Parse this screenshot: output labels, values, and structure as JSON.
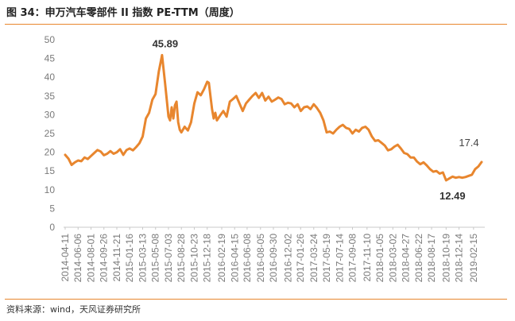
{
  "header": {
    "title": "图 34：申万汽车零部件 II 指数 PE-TTM（周度）"
  },
  "footer": {
    "source": "资料来源：wind，天风证券研究所"
  },
  "chart_data": {
    "type": "line",
    "series": [
      {
        "color": "#e8862e",
        "points": [
          [
            "2014-04-11",
            19.3
          ],
          [
            "2014-04-25",
            18.3
          ],
          [
            "2014-05-09",
            16.6
          ],
          [
            "2014-05-23",
            17.3
          ],
          [
            "2014-06-06",
            17.8
          ],
          [
            "2014-06-20",
            17.6
          ],
          [
            "2014-07-04",
            18.6
          ],
          [
            "2014-07-18",
            18.2
          ],
          [
            "2014-08-01",
            19.0
          ],
          [
            "2014-08-15",
            19.8
          ],
          [
            "2014-08-29",
            20.6
          ],
          [
            "2014-09-12",
            20.2
          ],
          [
            "2014-09-26",
            19.2
          ],
          [
            "2014-10-10",
            19.6
          ],
          [
            "2014-10-24",
            20.3
          ],
          [
            "2014-11-07",
            19.6
          ],
          [
            "2014-11-21",
            20.0
          ],
          [
            "2014-12-05",
            20.8
          ],
          [
            "2014-12-19",
            19.3
          ],
          [
            "2015-01-02",
            20.6
          ],
          [
            "2015-01-16",
            21.0
          ],
          [
            "2015-01-30",
            20.5
          ],
          [
            "2015-02-13",
            21.4
          ],
          [
            "2015-02-27",
            22.4
          ],
          [
            "2015-03-13",
            24.2
          ],
          [
            "2015-03-27",
            29.0
          ],
          [
            "2015-04-10",
            30.5
          ],
          [
            "2015-04-24",
            34.0
          ],
          [
            "2015-05-08",
            35.5
          ],
          [
            "2015-05-22",
            41.5
          ],
          [
            "2015-06-05",
            45.89
          ],
          [
            "2015-06-19",
            38.0
          ],
          [
            "2015-07-03",
            29.5
          ],
          [
            "2015-07-10",
            28.5
          ],
          [
            "2015-07-17",
            32.0
          ],
          [
            "2015-07-24",
            29.0
          ],
          [
            "2015-07-31",
            32.5
          ],
          [
            "2015-08-07",
            33.5
          ],
          [
            "2015-08-14",
            28.0
          ],
          [
            "2015-08-21",
            26.0
          ],
          [
            "2015-08-28",
            25.3
          ],
          [
            "2015-09-11",
            26.8
          ],
          [
            "2015-09-25",
            25.8
          ],
          [
            "2015-10-09",
            28.0
          ],
          [
            "2015-10-23",
            33.0
          ],
          [
            "2015-11-06",
            36.0
          ],
          [
            "2015-11-20",
            35.2
          ],
          [
            "2015-12-04",
            36.8
          ],
          [
            "2015-12-18",
            38.8
          ],
          [
            "2015-12-25",
            38.5
          ],
          [
            "2016-01-08",
            31.5
          ],
          [
            "2016-01-15",
            29.0
          ],
          [
            "2016-01-22",
            30.5
          ],
          [
            "2016-01-29",
            28.5
          ],
          [
            "2016-02-12",
            29.8
          ],
          [
            "2016-02-26",
            31.0
          ],
          [
            "2016-03-11",
            29.5
          ],
          [
            "2016-03-25",
            33.5
          ],
          [
            "2016-04-08",
            34.2
          ],
          [
            "2016-04-22",
            35.0
          ],
          [
            "2016-05-06",
            33.0
          ],
          [
            "2016-05-20",
            31.0
          ],
          [
            "2016-06-03",
            33.0
          ],
          [
            "2016-06-17",
            34.0
          ],
          [
            "2016-07-01",
            35.0
          ],
          [
            "2016-07-15",
            35.8
          ],
          [
            "2016-07-29",
            34.5
          ],
          [
            "2016-08-12",
            35.8
          ],
          [
            "2016-08-26",
            33.8
          ],
          [
            "2016-09-09",
            34.8
          ],
          [
            "2016-09-23",
            33.5
          ],
          [
            "2016-10-07",
            34.0
          ],
          [
            "2016-10-21",
            34.6
          ],
          [
            "2016-11-04",
            34.2
          ],
          [
            "2016-11-18",
            32.8
          ],
          [
            "2016-12-02",
            33.2
          ],
          [
            "2016-12-16",
            33.0
          ],
          [
            "2016-12-30",
            32.0
          ],
          [
            "2017-01-13",
            32.8
          ],
          [
            "2017-01-27",
            31.0
          ],
          [
            "2017-02-10",
            32.0
          ],
          [
            "2017-02-24",
            32.2
          ],
          [
            "2017-03-10",
            31.5
          ],
          [
            "2017-03-24",
            32.8
          ],
          [
            "2017-04-07",
            31.8
          ],
          [
            "2017-04-21",
            30.5
          ],
          [
            "2017-05-05",
            28.5
          ],
          [
            "2017-05-19",
            25.3
          ],
          [
            "2017-06-02",
            25.5
          ],
          [
            "2017-06-16",
            25.0
          ],
          [
            "2017-06-30",
            26.0
          ],
          [
            "2017-07-14",
            26.8
          ],
          [
            "2017-07-28",
            27.3
          ],
          [
            "2017-08-11",
            26.5
          ],
          [
            "2017-08-25",
            26.2
          ],
          [
            "2017-09-08",
            25.0
          ],
          [
            "2017-09-22",
            26.0
          ],
          [
            "2017-10-06",
            25.5
          ],
          [
            "2017-10-20",
            26.5
          ],
          [
            "2017-11-03",
            26.8
          ],
          [
            "2017-11-17",
            26.0
          ],
          [
            "2017-12-01",
            24.2
          ],
          [
            "2017-12-15",
            23.0
          ],
          [
            "2017-12-29",
            23.2
          ],
          [
            "2018-01-12",
            22.5
          ],
          [
            "2018-01-26",
            21.8
          ],
          [
            "2018-02-09",
            20.5
          ],
          [
            "2018-02-23",
            20.8
          ],
          [
            "2018-03-09",
            21.5
          ],
          [
            "2018-03-23",
            22.0
          ],
          [
            "2018-04-06",
            21.0
          ],
          [
            "2018-04-20",
            19.8
          ],
          [
            "2018-05-04",
            19.5
          ],
          [
            "2018-05-18",
            18.6
          ],
          [
            "2018-06-01",
            18.6
          ],
          [
            "2018-06-15",
            17.5
          ],
          [
            "2018-06-29",
            16.8
          ],
          [
            "2018-07-13",
            17.3
          ],
          [
            "2018-07-27",
            16.5
          ],
          [
            "2018-08-10",
            15.5
          ],
          [
            "2018-08-24",
            14.8
          ],
          [
            "2018-09-07",
            15.0
          ],
          [
            "2018-09-21",
            14.3
          ],
          [
            "2018-10-05",
            14.6
          ],
          [
            "2018-10-19",
            12.49
          ],
          [
            "2018-11-02",
            13.0
          ],
          [
            "2018-11-16",
            13.5
          ],
          [
            "2018-11-30",
            13.2
          ],
          [
            "2018-12-14",
            13.4
          ],
          [
            "2018-12-28",
            13.2
          ],
          [
            "2019-01-11",
            13.4
          ],
          [
            "2019-01-25",
            13.7
          ],
          [
            "2019-02-08",
            14.0
          ],
          [
            "2019-02-22",
            15.5
          ],
          [
            "2019-03-08",
            16.2
          ],
          [
            "2019-03-22",
            17.4
          ]
        ]
      }
    ],
    "x_tick_labels": [
      "2014-04-11",
      "2014-06-06",
      "2014-08-01",
      "2014-09-26",
      "2014-11-21",
      "2015-01-16",
      "2015-03-13",
      "2015-05-08",
      "2015-07-03",
      "2015-08-28",
      "2015-10-23",
      "2015-12-18",
      "2016-02-19",
      "2016-04-15",
      "2016-06-08",
      "2016-08-05",
      "2016-09-30",
      "2016-12-02",
      "2017-01-26",
      "2017-03-24",
      "2017-05-19",
      "2017-07-14",
      "2017-09-08",
      "2017-11-10",
      "2018-01-05",
      "2018-03-02",
      "2018-04-27",
      "2018-06-22",
      "2018-08-17",
      "2018-10-19",
      "2018-12-14",
      "2019-02-15"
    ],
    "x_range": [
      "2014-04-11",
      "2019-03-22"
    ],
    "y_ticks": [
      0,
      5,
      10,
      15,
      20,
      25,
      30,
      35,
      40,
      45,
      50
    ],
    "ylim": [
      0,
      50
    ],
    "grid": false,
    "annotations": [
      {
        "text": "45.89",
        "date": "2015-06-05",
        "value": 45.89
      },
      {
        "text": "17.4",
        "date": "2019-03-22",
        "value": 17.4
      },
      {
        "text": "12.49",
        "date": "2018-10-19",
        "value": 12.49
      }
    ]
  }
}
